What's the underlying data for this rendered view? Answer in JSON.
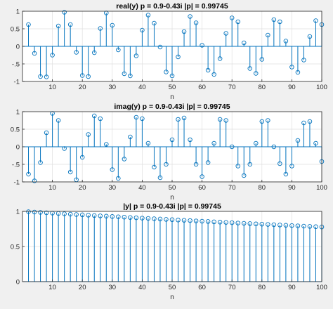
{
  "colors": {
    "stem": "#0072bd",
    "axis": "#262626",
    "grid": "#dfdfdf",
    "figure_bg": "#f0f0f0",
    "axes_bg": "#ffffff"
  },
  "chart_data": [
    {
      "type": "stem",
      "title": "real(y) p = 0.9-0.43i |p| = 0.99745",
      "xlabel": "n",
      "ylabel": "",
      "xlim": [
        0,
        100
      ],
      "ylim": [
        -1,
        1
      ],
      "xticks": [
        10,
        20,
        30,
        40,
        50,
        60,
        70,
        80,
        90,
        100
      ],
      "yticks": [
        -1,
        -0.5,
        0,
        0.5,
        1
      ],
      "grid": true,
      "x": [
        2,
        4,
        6,
        8,
        10,
        12,
        14,
        16,
        18,
        20,
        22,
        24,
        26,
        28,
        30,
        32,
        34,
        36,
        38,
        40,
        42,
        44,
        46,
        48,
        50,
        52,
        54,
        56,
        58,
        60,
        62,
        64,
        66,
        68,
        70,
        72,
        74,
        76,
        78,
        80,
        82,
        84,
        86,
        88,
        90,
        92,
        94,
        96,
        98,
        100
      ],
      "values": [
        0.62,
        -0.2,
        -0.86,
        -0.87,
        -0.25,
        0.58,
        0.97,
        0.62,
        -0.17,
        -0.83,
        -0.86,
        -0.18,
        0.51,
        0.95,
        0.6,
        -0.1,
        -0.78,
        -0.84,
        -0.27,
        0.46,
        0.89,
        0.66,
        -0.02,
        -0.73,
        -0.84,
        -0.3,
        0.42,
        0.85,
        0.67,
        0.03,
        -0.68,
        -0.8,
        -0.35,
        0.37,
        0.81,
        0.7,
        0.1,
        -0.63,
        -0.77,
        -0.37,
        0.32,
        0.76,
        0.7,
        0.15,
        -0.59,
        -0.74,
        -0.39,
        0.28,
        0.73,
        0.62
      ]
    },
    {
      "type": "stem",
      "title": "imag(y) p = 0.9-0.43i |p| = 0.99745",
      "xlabel": "n",
      "ylabel": "",
      "xlim": [
        0,
        100
      ],
      "ylim": [
        -1,
        1
      ],
      "xticks": [
        10,
        20,
        30,
        40,
        50,
        60,
        70,
        80,
        90,
        100
      ],
      "yticks": [
        -1,
        -0.5,
        0,
        0.5,
        1
      ],
      "grid": true,
      "x": [
        2,
        4,
        6,
        8,
        10,
        12,
        14,
        16,
        18,
        20,
        22,
        24,
        26,
        28,
        30,
        32,
        34,
        36,
        38,
        40,
        42,
        44,
        46,
        48,
        50,
        52,
        54,
        56,
        58,
        60,
        62,
        64,
        66,
        68,
        70,
        72,
        74,
        76,
        78,
        80,
        82,
        84,
        86,
        88,
        90,
        92,
        94,
        96,
        98,
        100
      ],
      "values": [
        -0.78,
        -0.97,
        -0.45,
        0.4,
        0.95,
        0.75,
        -0.05,
        -0.72,
        -0.94,
        -0.3,
        0.35,
        0.88,
        0.8,
        0.07,
        -0.65,
        -0.9,
        -0.35,
        0.28,
        0.84,
        0.8,
        0.1,
        -0.58,
        -0.88,
        -0.5,
        0.2,
        0.78,
        0.82,
        0.2,
        -0.5,
        -0.85,
        -0.45,
        0.1,
        0.78,
        0.75,
        0.0,
        -0.55,
        -0.82,
        -0.5,
        0.1,
        0.72,
        0.75,
        0.0,
        -0.48,
        -0.78,
        -0.55,
        0.18,
        0.68,
        0.72,
        0.1,
        -0.42
      ]
    },
    {
      "type": "stem",
      "title": "|y| p = 0.9-0.43i |p| = 0.99745",
      "xlabel": "n",
      "ylabel": "",
      "xlim": [
        0,
        100
      ],
      "ylim": [
        0,
        1
      ],
      "xticks": [
        10,
        20,
        30,
        40,
        50,
        60,
        70,
        80,
        90,
        100
      ],
      "yticks": [
        0,
        0.5,
        1
      ],
      "grid": true,
      "x": [
        2,
        4,
        6,
        8,
        10,
        12,
        14,
        16,
        18,
        20,
        22,
        24,
        26,
        28,
        30,
        32,
        34,
        36,
        38,
        40,
        42,
        44,
        46,
        48,
        50,
        52,
        54,
        56,
        58,
        60,
        62,
        64,
        66,
        68,
        70,
        72,
        74,
        76,
        78,
        80,
        82,
        84,
        86,
        88,
        90,
        92,
        94,
        96,
        98,
        100
      ],
      "values": [
        0.995,
        0.99,
        0.985,
        0.98,
        0.975,
        0.97,
        0.965,
        0.96,
        0.955,
        0.951,
        0.946,
        0.941,
        0.936,
        0.932,
        0.927,
        0.923,
        0.918,
        0.913,
        0.909,
        0.904,
        0.9,
        0.895,
        0.891,
        0.886,
        0.882,
        0.877,
        0.873,
        0.869,
        0.864,
        0.86,
        0.856,
        0.851,
        0.847,
        0.843,
        0.839,
        0.834,
        0.83,
        0.826,
        0.822,
        0.818,
        0.814,
        0.81,
        0.806,
        0.802,
        0.798,
        0.794,
        0.79,
        0.786,
        0.782,
        0.778
      ]
    }
  ]
}
